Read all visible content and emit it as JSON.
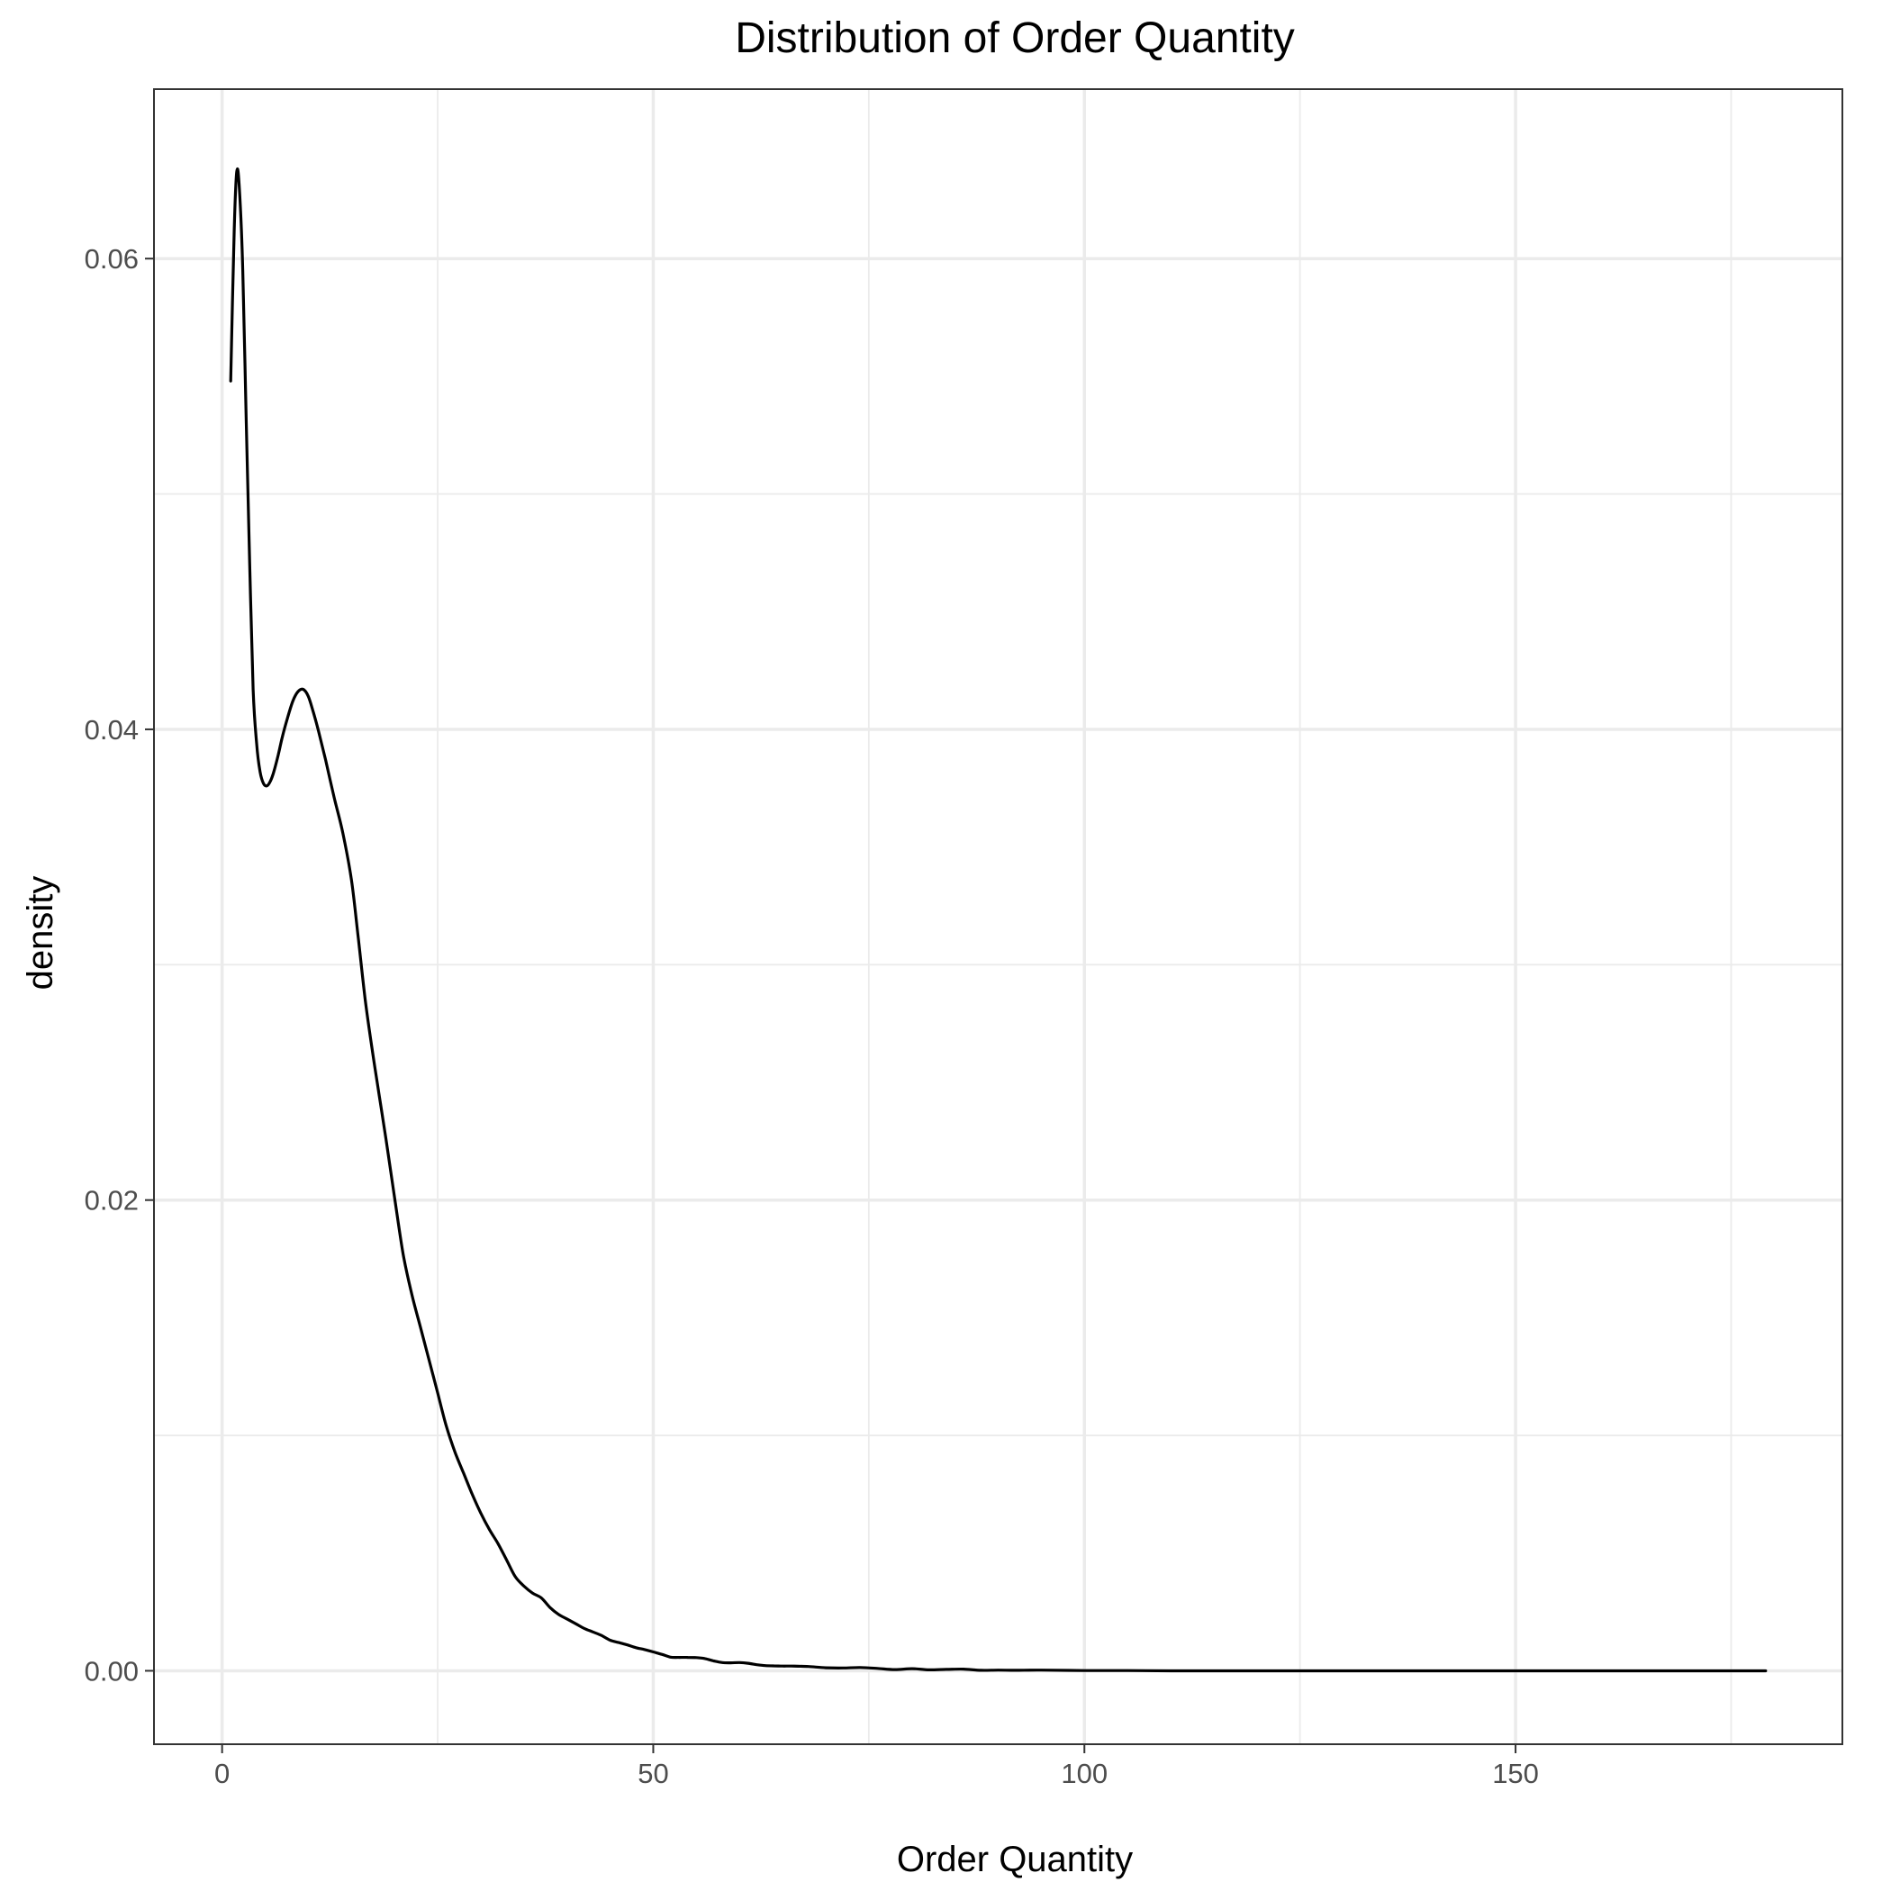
{
  "chart_data": {
    "type": "line",
    "title": "Distribution of Order Quantity",
    "xlabel": "Order Quantity",
    "ylabel": "density",
    "xlim": [
      -7.9,
      187.9
    ],
    "ylim": [
      -0.00312,
      0.0672
    ],
    "x_ticks": [
      0,
      50,
      100,
      150
    ],
    "x_tick_labels": [
      "0",
      "50",
      "100",
      "150"
    ],
    "x_minor_ticks": [
      25,
      75,
      125,
      175
    ],
    "y_ticks": [
      0.0,
      0.02,
      0.04,
      0.06
    ],
    "y_tick_labels": [
      "0.00",
      "0.02",
      "0.04",
      "0.06"
    ],
    "y_minor_ticks": [
      0.01,
      0.03,
      0.05
    ],
    "grid": true,
    "legend": "none",
    "line_color": "#000000",
    "series": [
      {
        "x": [
          1,
          1.4,
          1.7,
          2.0,
          2.4,
          2.8,
          3.2,
          3.6,
          4.0,
          4.4,
          4.8,
          5.2,
          5.6,
          6.0,
          6.5,
          7.0,
          7.6,
          8.2,
          8.8,
          9.4,
          10.0,
          10.6,
          11.2,
          12.0,
          13.0,
          14.0,
          15.0,
          15.8,
          16.6,
          17.4,
          18.2,
          19.0,
          20.0,
          21.0,
          22.0,
          23.0,
          24.0,
          25.0,
          26.0,
          27.0,
          28.0,
          29.0,
          30.0,
          31.0,
          32.0,
          33.0,
          34.0,
          35.0,
          36.0,
          37.0,
          38.0,
          39.0,
          40.0,
          41.0,
          42.0,
          43.0,
          44.0,
          45.0,
          46.0,
          47.0,
          48.0,
          49.0,
          50.0,
          51.0,
          52.0,
          53.0,
          54.0,
          55.0,
          56.0,
          57.0,
          58.0,
          59.0,
          60.0,
          61.0,
          62.0,
          63.0,
          64.0,
          65.0,
          66.0,
          68.0,
          70.0,
          72.0,
          74.0,
          76.0,
          78.0,
          80.0,
          82.0,
          84.0,
          86.0,
          88.0,
          90.0,
          92.0,
          95.0,
          100.0,
          105.0,
          110.0,
          115.0,
          120.0,
          130.0,
          140.0,
          150.0,
          160.0,
          170.0,
          179.0
        ],
        "y": [
          0.0548,
          0.0612,
          0.0637,
          0.063,
          0.0595,
          0.053,
          0.047,
          0.0417,
          0.0394,
          0.0382,
          0.0377,
          0.0376,
          0.0378,
          0.0382,
          0.0389,
          0.0397,
          0.0405,
          0.0412,
          0.0416,
          0.0417,
          0.0414,
          0.0407,
          0.0399,
          0.0387,
          0.0371,
          0.0356,
          0.0336,
          0.0311,
          0.0285,
          0.0264,
          0.0245,
          0.0226,
          0.0201,
          0.0177,
          0.016,
          0.0146,
          0.0132,
          0.0118,
          0.0104,
          0.0093,
          0.0084,
          0.0075,
          0.0067,
          0.006,
          0.0054,
          0.0047,
          0.004,
          0.0036,
          0.0033,
          0.0031,
          0.0027,
          0.0024,
          0.0022,
          0.002,
          0.0018,
          0.00165,
          0.0015,
          0.0013,
          0.0012,
          0.0011,
          0.00098,
          0.0009,
          0.0008,
          0.0007,
          0.00058,
          0.00057,
          0.00057,
          0.00056,
          0.00052,
          0.00042,
          0.00035,
          0.00034,
          0.00035,
          0.00032,
          0.00026,
          0.00022,
          0.00021,
          0.0002,
          0.0002,
          0.00018,
          0.00013,
          0.00012,
          0.00014,
          0.0001,
          5e-05,
          9e-05,
          4e-05,
          6e-05,
          7e-05,
          2e-05,
          3e-05,
          2e-05,
          3e-05,
          1e-05,
          1e-05,
          0.0,
          0.0,
          0.0,
          0.0,
          0.0,
          0.0,
          0.0,
          0.0,
          0.0
        ]
      }
    ]
  }
}
